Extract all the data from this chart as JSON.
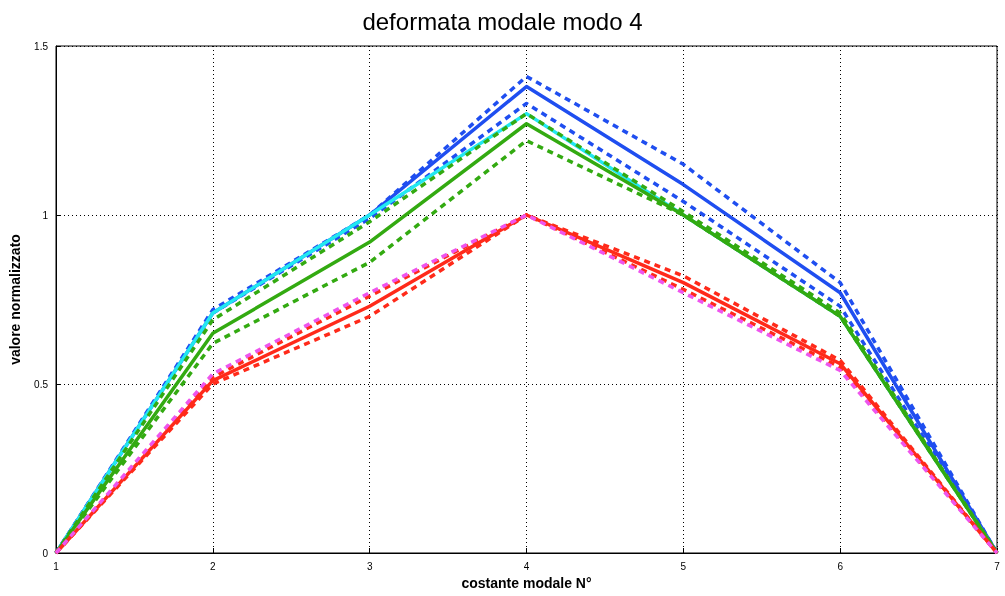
{
  "chart_data": {
    "type": "line",
    "title": "deformata modale modo 4",
    "xlabel": "costante modale N°",
    "ylabel": "valore normalizzato",
    "x": [
      1,
      2,
      3,
      4,
      5,
      6,
      7
    ],
    "series": [
      {
        "color": "#1f4ef0",
        "line_style": "dashed",
        "values": [
          0,
          0.72,
          1.0,
          1.41,
          1.15,
          0.8,
          0
        ]
      },
      {
        "color": "#1f4ef0",
        "line_style": "dashed",
        "values": [
          0,
          0.71,
          0.99,
          1.33,
          1.04,
          0.73,
          0
        ]
      },
      {
        "color": "#1f4ef0",
        "line_style": "solid",
        "values": [
          0,
          0.71,
          1.0,
          1.38,
          1.09,
          0.77,
          0
        ]
      },
      {
        "color": "#22e8f0",
        "line_style": "solid",
        "values": [
          0,
          0.71,
          1.0,
          1.3,
          1.0,
          0.7,
          0
        ]
      },
      {
        "color": "#33aa11",
        "line_style": "dashed",
        "values": [
          0,
          0.69,
          0.98,
          1.3,
          1.01,
          0.71,
          0
        ]
      },
      {
        "color": "#33aa11",
        "line_style": "dashed",
        "values": [
          0,
          0.62,
          0.86,
          1.22,
          1.0,
          0.7,
          0
        ]
      },
      {
        "color": "#33aa11",
        "line_style": "solid",
        "values": [
          0,
          0.65,
          0.92,
          1.27,
          1.0,
          0.7,
          0
        ]
      },
      {
        "color": "#ff2a1a",
        "line_style": "dashed",
        "values": [
          0,
          0.52,
          0.76,
          1.0,
          0.82,
          0.57,
          0
        ]
      },
      {
        "color": "#ff2a1a",
        "line_style": "dashed",
        "values": [
          0,
          0.5,
          0.7,
          1.0,
          0.78,
          0.55,
          0
        ]
      },
      {
        "color": "#ff2a1a",
        "line_style": "solid",
        "values": [
          0,
          0.51,
          0.73,
          1.0,
          0.8,
          0.56,
          0
        ]
      },
      {
        "color": "#ee55ee",
        "line_style": "dashed",
        "values": [
          0,
          0.53,
          0.77,
          1.0,
          0.77,
          0.54,
          0
        ]
      }
    ],
    "xlim": [
      1,
      7
    ],
    "xticks": [
      1,
      2,
      3,
      4,
      5,
      6,
      7
    ],
    "ylim": [
      0,
      1.5
    ],
    "yticks": [
      0,
      0.5,
      1,
      1.5
    ],
    "grid": true,
    "marker": "none"
  }
}
